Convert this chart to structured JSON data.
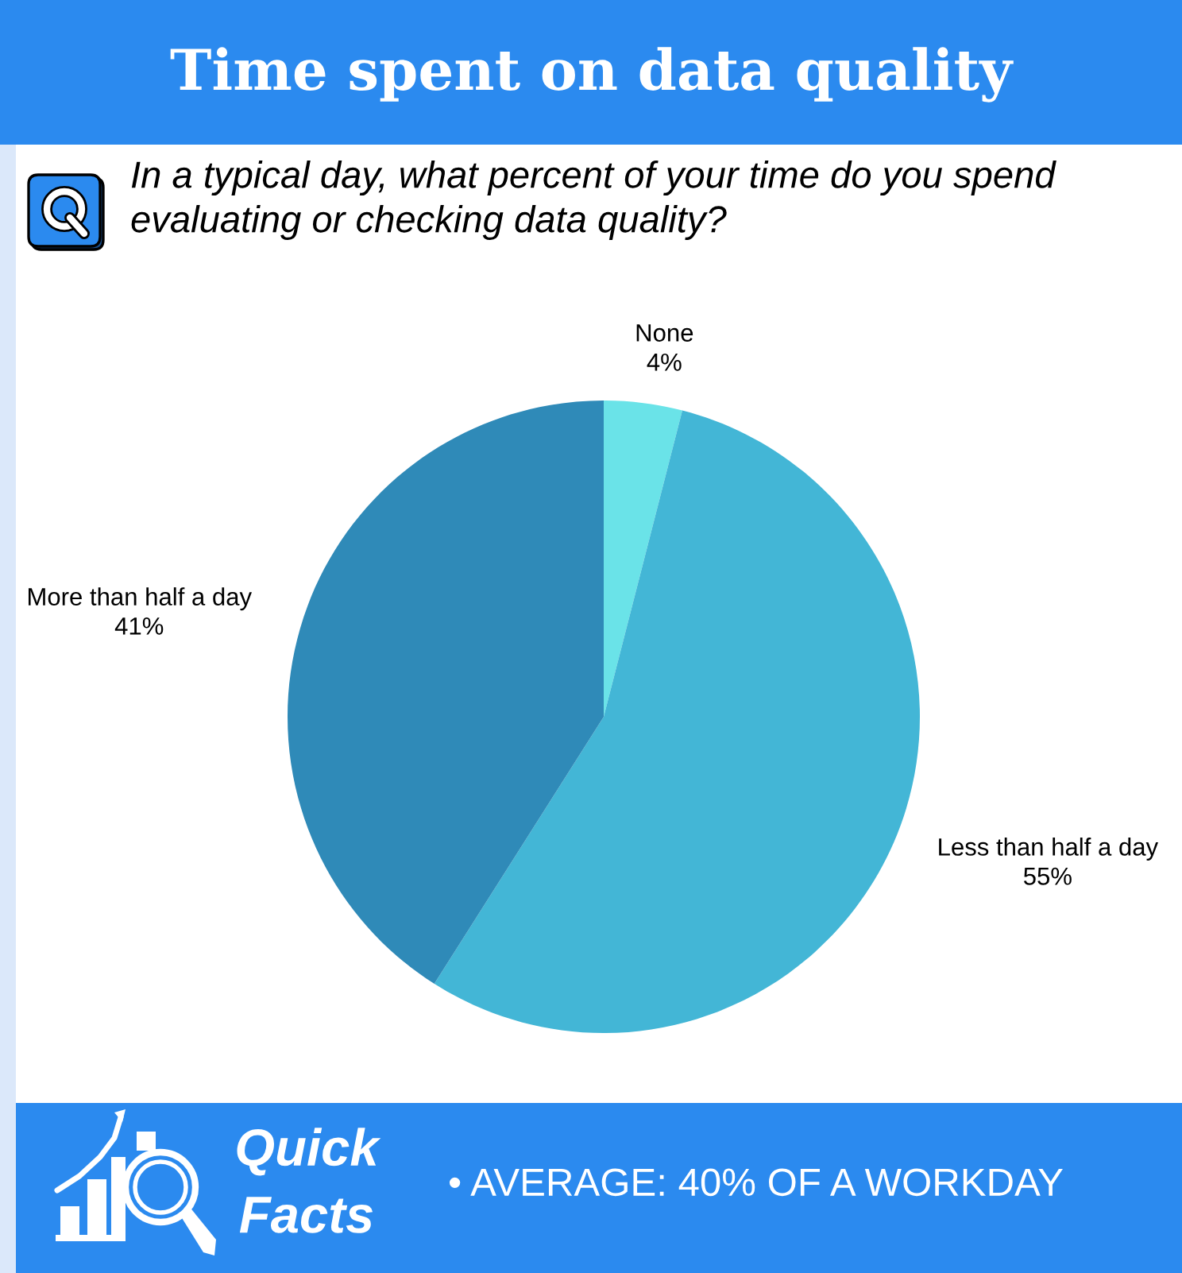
{
  "chart_data": {
    "type": "pie",
    "title": "Time spent on data quality",
    "subtitle": "In a typical day, what percent of your time do you spend evaluating or checking data quality?",
    "categories": [
      "None",
      "Less than half a day",
      "More than half a day"
    ],
    "values": [
      4,
      55,
      41
    ],
    "value_labels": [
      "4%",
      "55%",
      "41%"
    ],
    "colors": [
      "#6ae3e8",
      "#43b6d6",
      "#2f8ab8"
    ],
    "annotations": [
      "Quick\nFacts",
      "• AVERAGE: 40% OF A WORKDAY"
    ]
  }
}
